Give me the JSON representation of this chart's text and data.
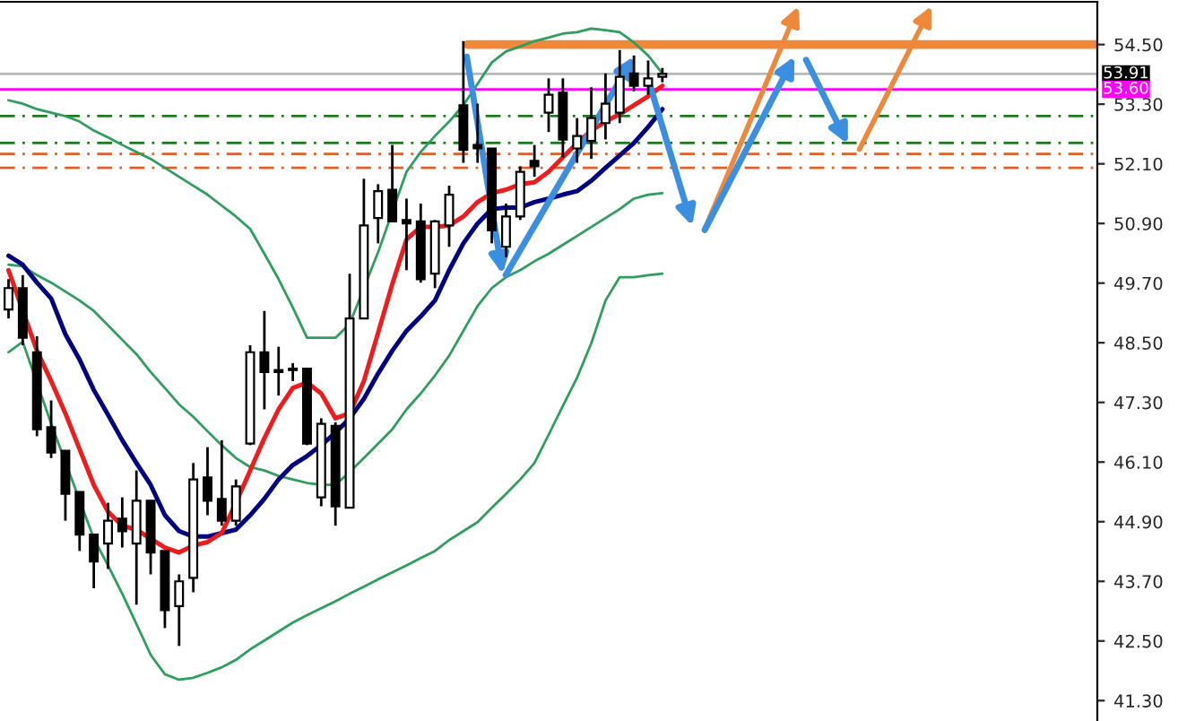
{
  "chart_data": {
    "type": "candlestick",
    "categories": [
      null,
      null,
      null,
      null,
      null,
      null,
      null,
      null,
      null,
      null,
      null,
      null,
      null,
      null,
      null,
      null,
      null,
      null,
      null,
      null,
      null,
      null,
      null,
      null,
      null,
      null,
      null,
      null,
      null,
      null,
      null,
      null,
      null,
      null,
      null,
      null,
      null,
      null,
      null,
      null,
      null,
      null,
      null,
      null,
      null,
      null,
      null
    ],
    "ohlc": [
      [
        49.17,
        49.78,
        48.99,
        49.6
      ],
      [
        49.6,
        49.86,
        48.45,
        48.6
      ],
      [
        48.31,
        48.63,
        46.62,
        46.76
      ],
      [
        46.8,
        47.34,
        46.18,
        46.29
      ],
      [
        46.33,
        46.33,
        44.92,
        45.46
      ],
      [
        45.5,
        45.5,
        44.31,
        44.64
      ],
      [
        44.64,
        44.64,
        43.56,
        44.1
      ],
      [
        44.46,
        45.28,
        43.95,
        44.92
      ],
      [
        44.96,
        45.39,
        44.38,
        44.71
      ],
      [
        44.46,
        45.93,
        43.23,
        45.32
      ],
      [
        45.32,
        45.32,
        43.84,
        44.28
      ],
      [
        44.31,
        44.31,
        42.76,
        43.12
      ],
      [
        43.2,
        43.84,
        42.4,
        43.7
      ],
      [
        43.77,
        46.08,
        43.48,
        45.75
      ],
      [
        45.79,
        46.4,
        45.03,
        45.32
      ],
      [
        45.36,
        46.54,
        44.82,
        44.92
      ],
      [
        44.92,
        45.75,
        44.82,
        45.61
      ],
      [
        46.47,
        48.45,
        46.44,
        48.31
      ],
      [
        48.31,
        49.14,
        47.16,
        47.91
      ],
      [
        47.95,
        48.42,
        47.44,
        47.91
      ],
      [
        47.95,
        48.09,
        47.73,
        47.98
      ],
      [
        47.98,
        47.98,
        46.44,
        46.47
      ],
      [
        45.39,
        46.98,
        45.21,
        46.87
      ],
      [
        46.83,
        46.9,
        44.82,
        45.21
      ],
      [
        45.18,
        49.89,
        45.18,
        48.99
      ],
      [
        48.99,
        51.8,
        48.99,
        50.86
      ],
      [
        51.01,
        51.69,
        50.5,
        51.55
      ],
      [
        51.58,
        52.48,
        50.94,
        50.94
      ],
      [
        50.97,
        51.4,
        49.96,
        50.9
      ],
      [
        50.94,
        51.3,
        49.71,
        49.78
      ],
      [
        49.89,
        50.97,
        49.6,
        50.94
      ],
      [
        50.86,
        51.66,
        50.43,
        51.48
      ],
      [
        53.28,
        54.57,
        52.12,
        52.38
      ],
      [
        52.48,
        53.31,
        52.12,
        52.41
      ],
      [
        52.41,
        52.41,
        50.5,
        50.76
      ],
      [
        50.43,
        51.3,
        50.22,
        51.04
      ],
      [
        51.04,
        52.05,
        50.97,
        51.94
      ],
      [
        52.16,
        52.48,
        51.84,
        52.05
      ],
      [
        53.13,
        53.82,
        52.74,
        53.49
      ],
      [
        53.53,
        53.82,
        52.23,
        52.59
      ],
      [
        52.41,
        53.02,
        52.12,
        52.66
      ],
      [
        52.56,
        53.64,
        52.2,
        53.02
      ],
      [
        52.92,
        53.92,
        52.59,
        53.31
      ],
      [
        53.13,
        54.39,
        52.92,
        53.85
      ],
      [
        53.92,
        54.28,
        53.56,
        53.67
      ],
      [
        53.67,
        54.18,
        53.49,
        53.82
      ],
      [
        53.85,
        54.03,
        53.74,
        53.91
      ]
    ],
    "series": [
      {
        "type": "line",
        "color": "#2e9e5e",
        "values": [
          53.38,
          53.31,
          53.2,
          53.13,
          53.06,
          52.95,
          52.77,
          52.63,
          52.48,
          52.34,
          52.2,
          52.02,
          51.84,
          51.66,
          51.48,
          51.26,
          51.04,
          50.79,
          50.29,
          49.78,
          49.21,
          48.6,
          48.6,
          48.6,
          48.88,
          null,
          50.32,
          null,
          51.94,
          52.34,
          52.66,
          52.95,
          53.28,
          53.71,
          54.14,
          54.36,
          54.46,
          54.57,
          54.64,
          54.72,
          54.75,
          54.82,
          54.79,
          54.75,
          54.54,
          54.28,
          53.92
        ]
      },
      {
        "type": "line",
        "color": "#2e9e5e",
        "values": [
          50.07,
          50.04,
          49.86,
          49.71,
          49.53,
          49.35,
          49.14,
          48.85,
          48.56,
          48.27,
          47.91,
          47.59,
          47.26,
          47.01,
          46.72,
          46.44,
          46.18,
          46.0,
          45.93,
          45.82,
          45.75,
          45.68,
          45.64,
          45.64,
          45.9,
          46.18,
          46.47,
          46.76,
          47.16,
          47.48,
          47.84,
          48.24,
          48.74,
          49.24,
          49.6,
          49.82,
          49.96,
          50.14,
          50.29,
          50.47,
          50.65,
          50.83,
          51.01,
          51.19,
          51.4,
          51.48,
          51.51
        ]
      },
      {
        "type": "line",
        "color": "#2e9e5e",
        "values": [
          48.31,
          48.52,
          null,
          46.87,
          null,
          null,
          44.56,
          44.02,
          43.45,
          42.84,
          42.22,
          41.83,
          41.72,
          41.76,
          41.86,
          41.97,
          42.12,
          42.33,
          42.51,
          42.69,
          42.87,
          43.02,
          43.16,
          43.3,
          43.45,
          43.59,
          43.74,
          43.88,
          44.02,
          44.17,
          44.31,
          44.53,
          44.71,
          44.89,
          45.18,
          45.46,
          45.75,
          46.08,
          46.65,
          47.23,
          47.8,
          48.49,
          49.35,
          49.82,
          49.82,
          49.86,
          49.89
        ]
      },
      {
        "type": "line",
        "color": "#000080",
        "values": [
          50.25,
          50.07,
          49.71,
          49.39,
          48.67,
          48.16,
          47.55,
          47.05,
          46.54,
          46.08,
          45.64,
          45.03,
          44.71,
          44.6,
          44.6,
          44.67,
          44.74,
          45.03,
          45.36,
          45.75,
          46.04,
          46.22,
          46.44,
          46.69,
          46.98,
          47.37,
          47.88,
          48.34,
          48.74,
          49.03,
          49.35,
          49.96,
          50.5,
          50.9,
          51.19,
          51.22,
          51.22,
          51.33,
          51.4,
          51.48,
          51.55,
          51.76,
          52.02,
          52.27,
          52.52,
          52.84,
          53.2
        ]
      },
      {
        "type": "line",
        "color": "#ee1c1c",
        "values": [
          49.96,
          null,
          48.34,
          47.73,
          47.08,
          46.36,
          45.64,
          45.1,
          44.82,
          44.74,
          44.56,
          44.38,
          44.28,
          44.42,
          44.49,
          44.67,
          45.28,
          45.93,
          46.58,
          47.16,
          47.59,
          47.7,
          47.48,
          46.98,
          47.08,
          47.73,
          48.7,
          49.68,
          50.58,
          50.83,
          50.83,
          50.86,
          51.04,
          51.33,
          51.51,
          51.58,
          51.69,
          51.73,
          51.94,
          52.23,
          52.52,
          52.77,
          52.95,
          53.1,
          53.28,
          53.46,
          53.67
        ]
      }
    ],
    "ref_lines": [
      {
        "axis": "y",
        "value": 54.5,
        "color": "#f0883c",
        "line_style": "solid"
      },
      {
        "axis": "y",
        "value": 53.91,
        "label": "53.91",
        "color": "#b8b8b8",
        "line_style": "solid"
      },
      {
        "axis": "y",
        "value": 53.6,
        "label": "53.60",
        "color": "#ff00ff",
        "line_style": "solid"
      },
      {
        "axis": "y",
        "value": 53.06,
        "color": "#1f7a1f",
        "line_style": "dashdot"
      },
      {
        "axis": "y",
        "value": 52.52,
        "color": "#1f7a1f",
        "line_style": "dashdot"
      },
      {
        "axis": "y",
        "value": 52.3,
        "color": "#e0602c",
        "line_style": "dashdot"
      },
      {
        "axis": "y",
        "value": 52.02,
        "color": "#e0602c",
        "line_style": "dashdot"
      }
    ],
    "ylim": [
      40.89,
      55.36
    ],
    "yticks": [
      {
        "value": 41.3,
        "label": "41.30"
      },
      {
        "value": 42.5,
        "label": "42.50"
      },
      {
        "value": 43.7,
        "label": "43.70"
      },
      {
        "value": 44.9,
        "label": "44.90"
      },
      {
        "value": 46.1,
        "label": "46.10"
      },
      {
        "value": 47.3,
        "label": "47.30"
      },
      {
        "value": 48.5,
        "label": "48.50"
      },
      {
        "value": 49.7,
        "label": "49.70"
      },
      {
        "value": 50.9,
        "label": "50.90"
      },
      {
        "value": 52.1,
        "label": "52.10"
      },
      {
        "value": 53.3,
        "label": "53.30"
      },
      {
        "value": 54.5,
        "label": "54.50"
      }
    ],
    "tick_labels": "y",
    "grid": false
  }
}
